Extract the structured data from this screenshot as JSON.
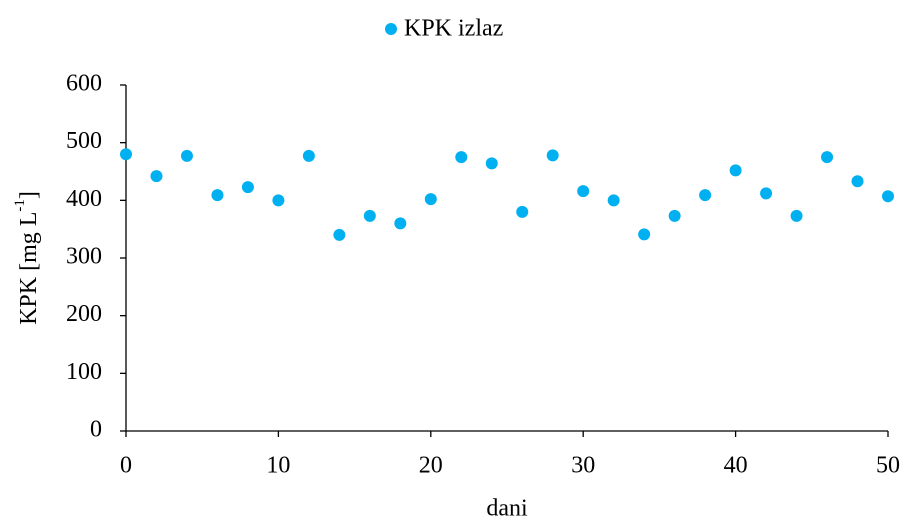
{
  "chart_data": {
    "type": "scatter",
    "x_label": "dani",
    "y_label": [
      "KPK [mg L",
      "-1",
      "]"
    ],
    "x": [
      0,
      2,
      4,
      6,
      8,
      10,
      12,
      14,
      16,
      18,
      20,
      22,
      24,
      26,
      28,
      30,
      32,
      34,
      36,
      38,
      40,
      42,
      44,
      46,
      48,
      50
    ],
    "series": [
      {
        "name": "KPK izlaz",
        "color": "#00b0f0",
        "values": [
          480,
          442,
          477,
          409,
          423,
          400,
          477,
          340,
          373,
          360,
          402,
          475,
          464,
          380,
          478,
          416,
          400,
          341,
          373,
          409,
          452,
          412,
          373,
          475,
          433,
          407
        ]
      }
    ],
    "xlim": [
      0,
      50
    ],
    "xticks": [
      0,
      10,
      20,
      30,
      40,
      50
    ],
    "ylim": [
      0,
      600
    ],
    "yticks": [
      0,
      100,
      200,
      300,
      400,
      500,
      600
    ],
    "grid": false,
    "legend": "top"
  }
}
